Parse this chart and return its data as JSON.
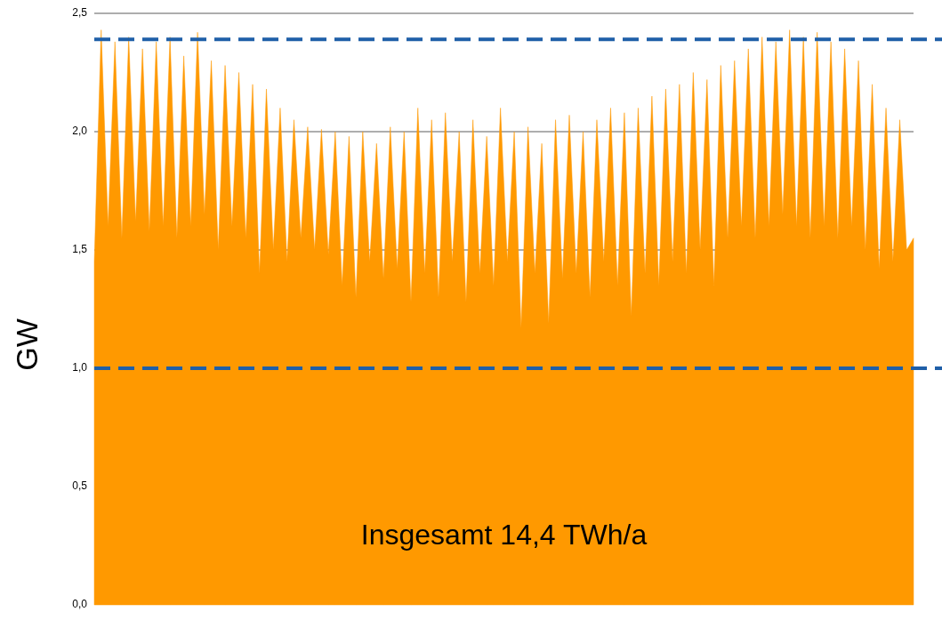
{
  "chart_data": {
    "type": "area",
    "ylabel": "GW",
    "color": "#ff9900",
    "categories": [
      null,
      null,
      null,
      null,
      null,
      null,
      null,
      null,
      null,
      null,
      null,
      null,
      null,
      null,
      null,
      null,
      null,
      null,
      null,
      null,
      null,
      null,
      null,
      null,
      null,
      null,
      null,
      null,
      null,
      null,
      null,
      null,
      null,
      null,
      null,
      null,
      null,
      null,
      null,
      null,
      null,
      null,
      null,
      null,
      null,
      null,
      null,
      null,
      null,
      null,
      null,
      null,
      null,
      null,
      null,
      null,
      null,
      null,
      null,
      null,
      null,
      null,
      null,
      null,
      null,
      null,
      null,
      null,
      null,
      null,
      null,
      null,
      null,
      null,
      null,
      null,
      null,
      null,
      null,
      null,
      null,
      null,
      null,
      null,
      null,
      null,
      null,
      null,
      null,
      null,
      null,
      null,
      null,
      null,
      null,
      null,
      null,
      null,
      null,
      null,
      null,
      null,
      null,
      null,
      null,
      null,
      null,
      null,
      null,
      null,
      null,
      null,
      null,
      null,
      null,
      null,
      null,
      null,
      null,
      null
    ],
    "values": [
      1.45,
      2.43,
      1.6,
      2.38,
      1.55,
      2.4,
      1.62,
      2.35,
      1.58,
      2.38,
      1.6,
      2.4,
      1.55,
      2.32,
      1.6,
      2.42,
      1.65,
      2.3,
      1.5,
      2.28,
      1.6,
      2.25,
      1.55,
      2.2,
      1.4,
      2.18,
      1.5,
      2.1,
      1.45,
      2.05,
      1.55,
      2.02,
      1.5,
      2.01,
      1.48,
      2.0,
      1.35,
      1.98,
      1.3,
      2.0,
      1.45,
      1.95,
      1.38,
      2.02,
      1.42,
      2.0,
      1.28,
      2.1,
      1.4,
      2.05,
      1.3,
      2.08,
      1.45,
      2.0,
      1.28,
      2.05,
      1.4,
      1.98,
      1.35,
      2.1,
      1.45,
      2.0,
      1.17,
      2.02,
      1.4,
      1.95,
      1.19,
      2.05,
      1.38,
      2.07,
      1.4,
      2.0,
      1.3,
      2.05,
      1.45,
      2.1,
      1.35,
      2.08,
      1.22,
      2.1,
      1.4,
      2.15,
      1.35,
      2.18,
      1.45,
      2.2,
      1.4,
      2.25,
      1.5,
      2.22,
      1.35,
      2.28,
      1.55,
      2.3,
      1.6,
      2.35,
      1.55,
      2.4,
      1.6,
      2.38,
      1.65,
      2.43,
      1.6,
      2.4,
      1.55,
      2.42,
      1.6,
      2.38,
      1.55,
      2.35,
      1.6,
      2.3,
      1.5,
      2.2,
      1.42,
      2.1,
      1.45,
      2.05,
      1.5,
      1.55
    ],
    "ylim": [
      0,
      2.5
    ],
    "yticks": [
      {
        "value": 0,
        "label": "0,0"
      },
      {
        "value": 0.5,
        "label": "0,5"
      },
      {
        "value": 1,
        "label": "1,0"
      },
      {
        "value": 1.5,
        "label": "1,5"
      },
      {
        "value": 2,
        "label": "2,0"
      },
      {
        "value": 2.5,
        "label": "2,5"
      }
    ],
    "grid": "y",
    "ref_lines": [
      {
        "axis": "y",
        "value": 2.39,
        "color": "#1f5fa8",
        "line_style": "dashed"
      },
      {
        "axis": "y",
        "value": 1.0,
        "color": "#1f5fa8",
        "line_style": "dashed"
      }
    ],
    "annotations": [
      "Insgesamt 14,4 TWh/a"
    ]
  }
}
